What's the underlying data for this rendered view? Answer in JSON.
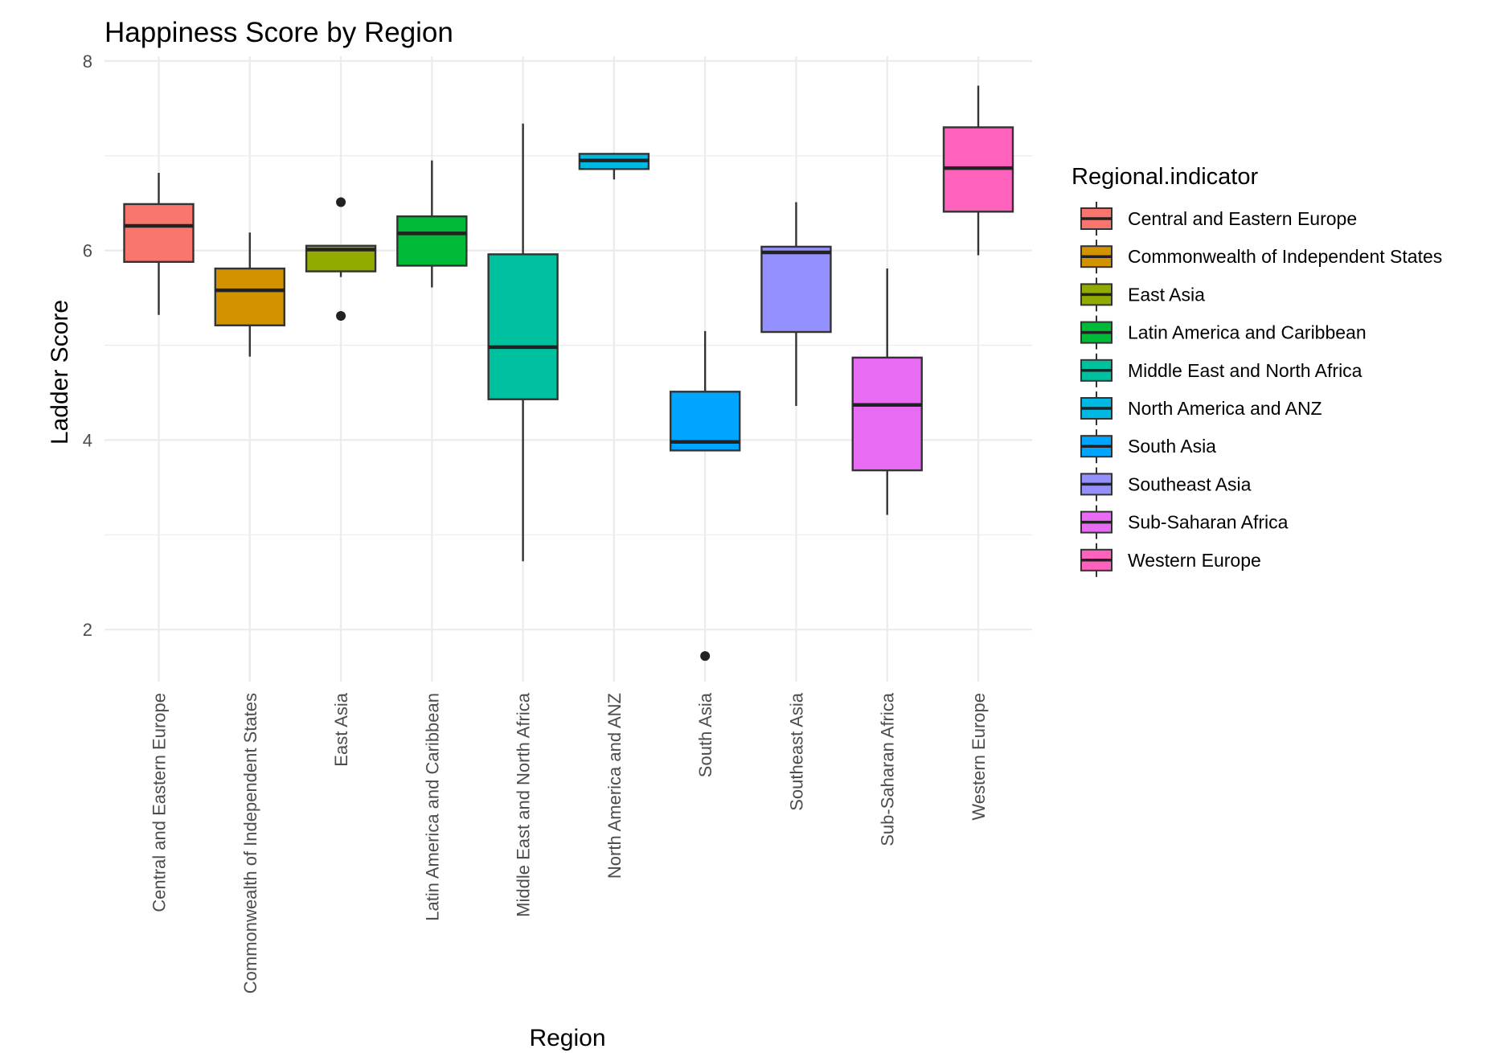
{
  "chart_data": {
    "type": "box",
    "title": "Happiness Score by Region",
    "xlabel": "Region",
    "ylabel": "Ladder Score",
    "ylim": [
      1.45,
      8.05
    ],
    "yticks": [
      2,
      4,
      6,
      8
    ],
    "grid": true,
    "legend_title": "Regional.indicator",
    "legend_position": "right",
    "categories": [
      "Central and Eastern Europe",
      "Commonwealth of Independent States",
      "East Asia",
      "Latin America and Caribbean",
      "Middle East and North Africa",
      "North America and ANZ",
      "South Asia",
      "Southeast Asia",
      "Sub-Saharan Africa",
      "Western Europe"
    ],
    "series": [
      {
        "name": "Central and Eastern Europe",
        "color": "#F8766D",
        "whisker_low": 5.32,
        "q1": 5.88,
        "median": 6.26,
        "q3": 6.49,
        "whisker_high": 6.82,
        "outliers": []
      },
      {
        "name": "Commonwealth of Independent States",
        "color": "#D39200",
        "whisker_low": 4.88,
        "q1": 5.21,
        "median": 5.58,
        "q3": 5.81,
        "whisker_high": 6.19,
        "outliers": []
      },
      {
        "name": "East Asia",
        "color": "#93AA00",
        "whisker_low": 5.72,
        "q1": 5.78,
        "median": 6.01,
        "q3": 6.05,
        "whisker_high": 6.05,
        "outliers": [
          6.51,
          5.31
        ]
      },
      {
        "name": "Latin America and Caribbean",
        "color": "#00BA38",
        "whisker_low": 5.61,
        "q1": 5.84,
        "median": 6.18,
        "q3": 6.36,
        "whisker_high": 6.95,
        "outliers": []
      },
      {
        "name": "Middle East and North Africa",
        "color": "#00C19F",
        "whisker_low": 2.72,
        "q1": 4.43,
        "median": 4.98,
        "q3": 5.96,
        "whisker_high": 7.34,
        "outliers": []
      },
      {
        "name": "North America and ANZ",
        "color": "#00B9E3",
        "whisker_low": 6.75,
        "q1": 6.86,
        "median": 6.95,
        "q3": 7.02,
        "whisker_high": 7.03,
        "outliers": []
      },
      {
        "name": "South Asia",
        "color": "#00A5FF",
        "whisker_low": 3.89,
        "q1": 3.89,
        "median": 3.98,
        "q3": 4.51,
        "whisker_high": 5.15,
        "outliers": [
          1.72
        ]
      },
      {
        "name": "Southeast Asia",
        "color": "#9590FF",
        "whisker_low": 4.36,
        "q1": 5.14,
        "median": 5.98,
        "q3": 6.04,
        "whisker_high": 6.51,
        "outliers": []
      },
      {
        "name": "Sub-Saharan Africa",
        "color": "#E76BF3",
        "whisker_low": 3.21,
        "q1": 3.68,
        "median": 4.37,
        "q3": 4.87,
        "whisker_high": 5.81,
        "outliers": []
      },
      {
        "name": "Western Europe",
        "color": "#FF62BC",
        "whisker_low": 5.95,
        "q1": 6.41,
        "median": 6.87,
        "q3": 7.3,
        "whisker_high": 7.74,
        "outliers": []
      }
    ]
  }
}
